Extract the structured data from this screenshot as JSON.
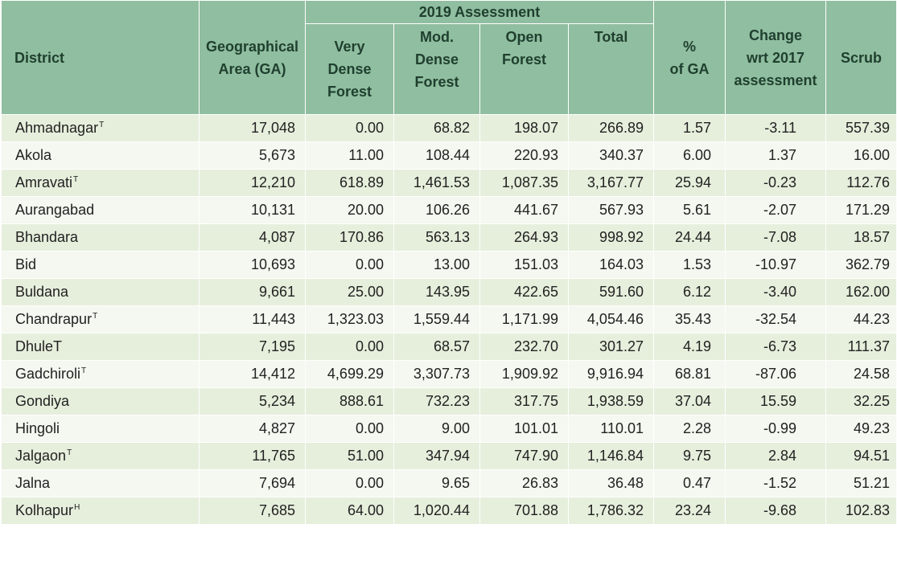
{
  "header": {
    "district": "District",
    "geo_line1": "Geographical",
    "geo_line2": "Area (GA)",
    "assessment": "2019 Assessment",
    "vdf": [
      "Very",
      "Dense",
      "Forest"
    ],
    "mdf": [
      "Mod.",
      "Dense",
      "Forest"
    ],
    "of": [
      "Open",
      "Forest"
    ],
    "total": "Total",
    "pct": [
      "%",
      "of GA"
    ],
    "change": [
      "Change",
      "wrt 2017",
      "assessment"
    ],
    "scrub": "Scrub"
  },
  "rows": [
    {
      "district": "Ahmadnagar",
      "sup": "T",
      "ga": "17,048",
      "vdf": "0.00",
      "mdf": "68.82",
      "of": "198.07",
      "total": "266.89",
      "pct": "1.57",
      "change": "-3.11",
      "scrub": "557.39"
    },
    {
      "district": "Akola",
      "sup": "",
      "ga": "5,673",
      "vdf": "11.00",
      "mdf": "108.44",
      "of": "220.93",
      "total": "340.37",
      "pct": "6.00",
      "change": "1.37",
      "scrub": "16.00"
    },
    {
      "district": "Amravati",
      "sup": "T",
      "ga": "12,210",
      "vdf": "618.89",
      "mdf": "1,461.53",
      "of": "1,087.35",
      "total": "3,167.77",
      "pct": "25.94",
      "change": "-0.23",
      "scrub": "112.76"
    },
    {
      "district": "Aurangabad",
      "sup": "",
      "ga": "10,131",
      "vdf": "20.00",
      "mdf": "106.26",
      "of": "441.67",
      "total": "567.93",
      "pct": "5.61",
      "change": "-2.07",
      "scrub": "171.29"
    },
    {
      "district": "Bhandara",
      "sup": "",
      "ga": "4,087",
      "vdf": "170.86",
      "mdf": "563.13",
      "of": "264.93",
      "total": "998.92",
      "pct": "24.44",
      "change": "-7.08",
      "scrub": "18.57"
    },
    {
      "district": "Bid",
      "sup": "",
      "ga": "10,693",
      "vdf": "0.00",
      "mdf": "13.00",
      "of": "151.03",
      "total": "164.03",
      "pct": "1.53",
      "change": "-10.97",
      "scrub": "362.79"
    },
    {
      "district": "Buldana",
      "sup": "",
      "ga": "9,661",
      "vdf": "25.00",
      "mdf": "143.95",
      "of": "422.65",
      "total": "591.60",
      "pct": "6.12",
      "change": "-3.40",
      "scrub": "162.00"
    },
    {
      "district": "Chandrapur",
      "sup": "T",
      "ga": "11,443",
      "vdf": "1,323.03",
      "mdf": "1,559.44",
      "of": "1,171.99",
      "total": "4,054.46",
      "pct": "35.43",
      "change": "-32.54",
      "scrub": "44.23"
    },
    {
      "district": "DhuleT",
      "sup": "",
      "ga": "7,195",
      "vdf": "0.00",
      "mdf": "68.57",
      "of": "232.70",
      "total": "301.27",
      "pct": "4.19",
      "change": "-6.73",
      "scrub": "111.37"
    },
    {
      "district": "Gadchiroli",
      "sup": "T",
      "ga": "14,412",
      "vdf": "4,699.29",
      "mdf": "3,307.73",
      "of": "1,909.92",
      "total": "9,916.94",
      "pct": "68.81",
      "change": "-87.06",
      "scrub": "24.58"
    },
    {
      "district": "Gondiya",
      "sup": "",
      "ga": "5,234",
      "vdf": "888.61",
      "mdf": "732.23",
      "of": "317.75",
      "total": "1,938.59",
      "pct": "37.04",
      "change": "15.59",
      "scrub": "32.25"
    },
    {
      "district": "Hingoli",
      "sup": "",
      "ga": "4,827",
      "vdf": "0.00",
      "mdf": "9.00",
      "of": "101.01",
      "total": "110.01",
      "pct": "2.28",
      "change": "-0.99",
      "scrub": "49.23"
    },
    {
      "district": "Jalgaon",
      "sup": "T",
      "ga": "11,765",
      "vdf": "51.00",
      "mdf": "347.94",
      "of": "747.90",
      "total": "1,146.84",
      "pct": "9.75",
      "change": "2.84",
      "scrub": "94.51"
    },
    {
      "district": "Jalna",
      "sup": "",
      "ga": "7,694",
      "vdf": "0.00",
      "mdf": "9.65",
      "of": "26.83",
      "total": "36.48",
      "pct": "0.47",
      "change": "-1.52",
      "scrub": "51.21"
    },
    {
      "district": "Kolhapur",
      "sup": "H",
      "ga": "7,685",
      "vdf": "64.00",
      "mdf": "1,020.44",
      "of": "701.88",
      "total": "1,786.32",
      "pct": "23.24",
      "change": "-9.68",
      "scrub": "102.83"
    }
  ]
}
